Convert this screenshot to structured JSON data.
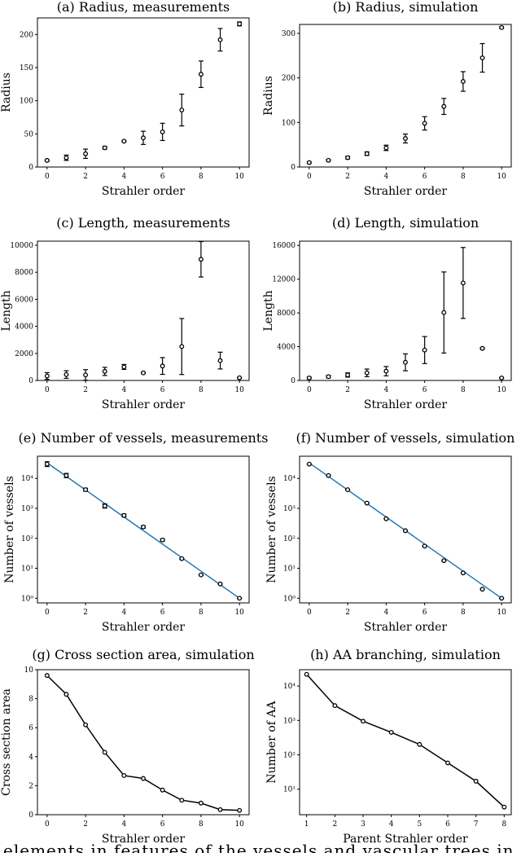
{
  "caption_fragment": "elements in features of the vessels and vascular trees in",
  "colors": {
    "fit_line": "#1f77b4",
    "marker": "#000000",
    "axis": "#000000"
  },
  "chart_data": [
    {
      "id": "a",
      "type": "scatter",
      "title": "(a) Radius, measurements",
      "xlabel": "Strahler order",
      "ylabel": "Radius",
      "yscale": "linear",
      "xlim": [
        -0.5,
        10.5
      ],
      "ylim": [
        0,
        225
      ],
      "xticks": [
        0,
        2,
        4,
        6,
        8,
        10
      ],
      "yticks": [
        0,
        50,
        100,
        150,
        200
      ],
      "x": [
        0,
        1,
        2,
        3,
        4,
        5,
        6,
        7,
        8,
        9,
        10
      ],
      "y": [
        10,
        14,
        20,
        29,
        39,
        44,
        53,
        86,
        140,
        192,
        216
      ],
      "err": [
        1,
        4,
        7,
        2,
        1,
        10,
        13,
        24,
        20,
        17,
        3
      ],
      "line": false,
      "fit": false
    },
    {
      "id": "b",
      "type": "scatter",
      "title": "(b) Radius, simulation",
      "xlabel": "Strahler order",
      "ylabel": "Radius",
      "yscale": "linear",
      "xlim": [
        -0.5,
        10.5
      ],
      "ylim": [
        0,
        320
      ],
      "xticks": [
        0,
        2,
        4,
        6,
        8,
        10
      ],
      "yticks": [
        0,
        100,
        200,
        300
      ],
      "x": [
        0,
        1,
        2,
        3,
        4,
        5,
        6,
        7,
        8,
        9,
        10
      ],
      "y": [
        10,
        15,
        21,
        30,
        43,
        64,
        98,
        136,
        192,
        245,
        313
      ],
      "err": [
        2,
        2,
        3,
        4,
        6,
        10,
        15,
        18,
        22,
        32,
        2
      ],
      "line": false,
      "fit": false
    },
    {
      "id": "c",
      "type": "scatter",
      "title": "(c) Length, measurements",
      "xlabel": "Strahler order",
      "ylabel": "Length",
      "yscale": "linear",
      "xlim": [
        -0.5,
        10.5
      ],
      "ylim": [
        0,
        10300
      ],
      "xticks": [
        0,
        2,
        4,
        6,
        8,
        10
      ],
      "yticks": [
        0,
        2000,
        4000,
        6000,
        8000,
        10000
      ],
      "x": [
        0,
        1,
        2,
        3,
        4,
        5,
        6,
        7,
        8,
        9,
        10
      ],
      "y": [
        330,
        440,
        410,
        670,
        1000,
        560,
        1070,
        2510,
        8960,
        1470,
        200
      ],
      "err": [
        250,
        280,
        390,
        300,
        180,
        50,
        620,
        2070,
        1310,
        620,
        40
      ],
      "line": false,
      "fit": false
    },
    {
      "id": "d",
      "type": "scatter",
      "title": "(d) Length, simulation",
      "xlabel": "Strahler order",
      "ylabel": "Length",
      "yscale": "linear",
      "xlim": [
        -0.5,
        10.5
      ],
      "ylim": [
        0,
        16500
      ],
      "xticks": [
        0,
        2,
        4,
        6,
        8,
        10
      ],
      "yticks": [
        0,
        4000,
        8000,
        12000,
        16000
      ],
      "x": [
        0,
        1,
        2,
        3,
        4,
        5,
        6,
        7,
        8,
        9,
        10
      ],
      "y": [
        300,
        450,
        650,
        900,
        1100,
        2150,
        3600,
        8050,
        11550,
        3800,
        300
      ],
      "err": [
        100,
        150,
        250,
        450,
        550,
        1000,
        1600,
        4800,
        4200,
        100,
        50
      ],
      "line": false,
      "fit": false
    },
    {
      "id": "e",
      "type": "scatter",
      "title": "(e) Number of vessels, measurements",
      "xlabel": "Strahler order",
      "ylabel": "Number of vessels",
      "yscale": "log",
      "xlim": [
        -0.5,
        10.5
      ],
      "ylim": [
        0.7,
        55000
      ],
      "xticks": [
        0,
        2,
        4,
        6,
        8,
        10
      ],
      "yticks": [
        1,
        10,
        100,
        1000,
        10000
      ],
      "x": [
        0,
        1,
        2,
        3,
        4,
        5,
        6,
        7,
        8,
        9,
        10
      ],
      "y": [
        30000,
        12500,
        4200,
        1200,
        580,
        240,
        88,
        21,
        6,
        3,
        1
      ],
      "errlog": [
        0.08,
        0.07,
        0.05,
        0.07,
        0.05,
        0.04,
        0.04,
        0.02,
        0.02,
        0.01,
        0.01
      ],
      "fit": {
        "x0": 0,
        "y0": 33000,
        "x1": 10,
        "y1": 1
      },
      "line": false
    },
    {
      "id": "f",
      "type": "scatter",
      "title": "(f) Number of vessels, simulation",
      "xlabel": "Strahler order",
      "ylabel": "Number of vessels",
      "yscale": "log",
      "xlim": [
        -0.5,
        10.5
      ],
      "ylim": [
        0.7,
        55000
      ],
      "xticks": [
        0,
        2,
        4,
        6,
        8,
        10
      ],
      "yticks": [
        1,
        10,
        100,
        1000,
        10000
      ],
      "x": [
        0,
        1,
        2,
        3,
        4,
        5,
        6,
        7,
        8,
        9,
        10
      ],
      "y": [
        30000,
        12500,
        4200,
        1500,
        450,
        180,
        55,
        18,
        7,
        2,
        1
      ],
      "errlog": [
        0.01,
        0.01,
        0.01,
        0.01,
        0.01,
        0.01,
        0.01,
        0.01,
        0.01,
        0.01,
        0.01
      ],
      "fit": {
        "x0": 0,
        "y0": 33000,
        "x1": 10,
        "y1": 1
      },
      "line": false
    },
    {
      "id": "g",
      "type": "line",
      "title": "(g) Cross section area, simulation",
      "xlabel": "Strahler order",
      "ylabel": "Cross section area",
      "yscale": "linear",
      "xlim": [
        -0.5,
        10.5
      ],
      "ylim": [
        0,
        10
      ],
      "xticks": [
        0,
        2,
        4,
        6,
        8,
        10
      ],
      "yticks": [
        0,
        2,
        4,
        6,
        8,
        10
      ],
      "x": [
        0,
        1,
        2,
        3,
        4,
        5,
        6,
        7,
        8,
        9,
        10
      ],
      "y": [
        9.6,
        8.3,
        6.2,
        4.3,
        2.7,
        2.5,
        1.7,
        1.0,
        0.8,
        0.35,
        0.3
      ],
      "line": true,
      "fit": false
    },
    {
      "id": "h",
      "type": "line",
      "title": "(h) AA branching, simulation",
      "xlabel": "Parent Strahler order",
      "ylabel": "Number of AA",
      "yscale": "log",
      "xlim": [
        0.75,
        8.25
      ],
      "ylim": [
        1.8,
        30000
      ],
      "xticks": [
        1,
        2,
        3,
        4,
        5,
        6,
        7,
        8
      ],
      "yticks": [
        10,
        100,
        1000,
        10000
      ],
      "x": [
        1,
        2,
        3,
        4,
        5,
        6,
        7,
        8
      ],
      "y": [
        22000,
        2700,
        950,
        450,
        200,
        58,
        17,
        3
      ],
      "line": true,
      "fit": false
    }
  ]
}
